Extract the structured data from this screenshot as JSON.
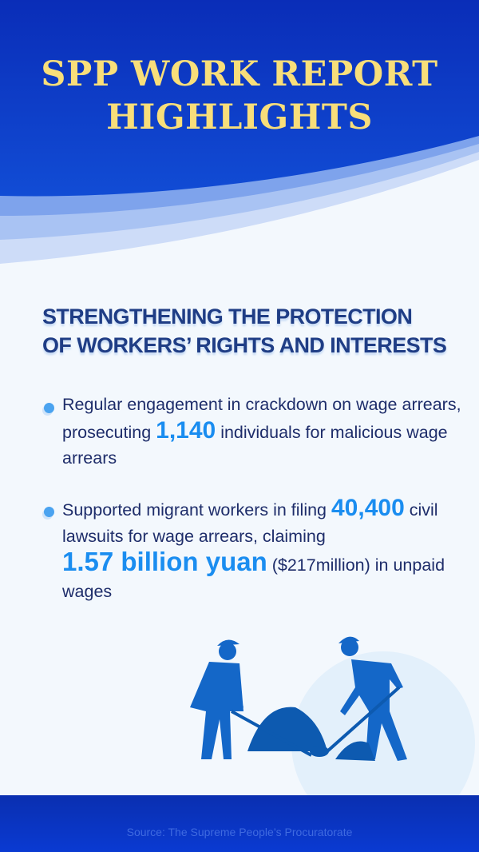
{
  "title": {
    "line1": "SPP WORK REPORT",
    "line2": "HIGHLIGHTS"
  },
  "heading": {
    "line1": "STRENGTHENING THE PROTECTION",
    "line2": "OF WORKERS’ RIGHTS AND INTERESTS"
  },
  "bullets": [
    {
      "pre": "Regular engagement in crackdown on wage arrears, prosecuting ",
      "num": "1,140",
      "post": " individuals for malicious wage arrears"
    },
    {
      "pre": "Supported migrant workers in filing ",
      "num": "40,400",
      "mid": " civil lawsuits for wage arrears, claiming ",
      "num2": "1.57 billion yuan",
      "post": " ($217million) in unpaid wages"
    }
  ],
  "source": "Source: The Supreme People’s Procuratorate",
  "colors": {
    "title": "#f8de7a",
    "heading": "#1f3d85",
    "highlight": "#1a8df0",
    "header_blue": "#0a3ad2"
  }
}
